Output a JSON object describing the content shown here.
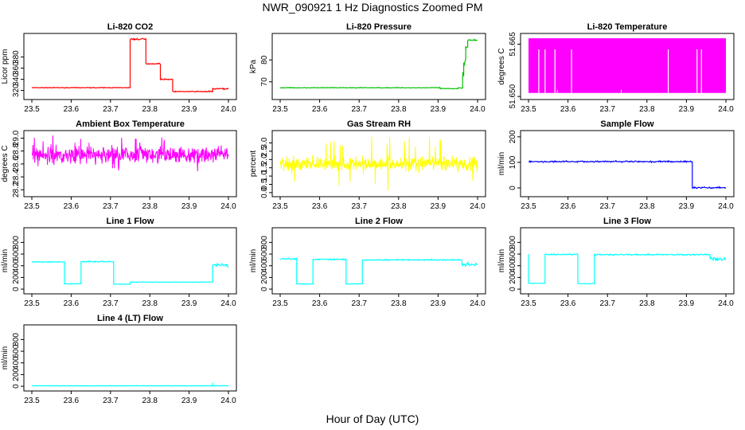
{
  "main_title": "NWR_090921  1 Hz Diagnostics Zoomed PM",
  "xlabel": "Hour of Day (UTC)",
  "chart_data": [
    {
      "type": "line",
      "title": "Li-820 CO2",
      "ylabel": "Licor ppm",
      "color": "#ff0000",
      "xlim": [
        23.5,
        24.0
      ],
      "ylim": [
        308,
        418
      ],
      "xticks": [
        "23.5",
        "23.6",
        "23.7",
        "23.8",
        "23.9",
        "24.0"
      ],
      "yticks": [
        "320",
        "340",
        "360",
        "380"
      ],
      "segments": [
        [
          23.5,
          23.75,
          325,
          0.4
        ],
        [
          23.75,
          23.79,
          412,
          1
        ],
        [
          23.79,
          23.827,
          368,
          0.6
        ],
        [
          23.827,
          23.858,
          340,
          0.6
        ],
        [
          23.858,
          23.935,
          318,
          0.5
        ],
        [
          23.935,
          23.96,
          318,
          0.8
        ],
        [
          23.96,
          24.0,
          323,
          0.8
        ]
      ]
    },
    {
      "type": "line",
      "title": "Li-820 Pressure",
      "ylabel": "kPa",
      "color": "#00c000",
      "xlim": [
        23.5,
        24.0
      ],
      "ylim": [
        63,
        91
      ],
      "xticks": [
        "23.5",
        "23.6",
        "23.7",
        "23.8",
        "23.9",
        "24.0"
      ],
      "yticks": [
        "70",
        "80"
      ],
      "segments": [
        [
          23.5,
          23.905,
          67.3,
          0.1
        ],
        [
          23.905,
          23.95,
          66.9,
          0.1
        ],
        [
          23.95,
          23.962,
          67.2,
          0.1
        ],
        [
          23.962,
          23.965,
          74,
          2
        ],
        [
          23.965,
          23.97,
          80,
          2
        ],
        [
          23.97,
          23.975,
          86,
          0.5
        ],
        [
          23.975,
          24.0,
          89,
          0.2
        ]
      ]
    },
    {
      "type": "line",
      "title": "Li-820 Temperature",
      "ylabel": "degrees C",
      "color": "#ff00ff",
      "xlim": [
        23.5,
        24.0
      ],
      "ylim": [
        51.6498,
        51.6674
      ],
      "xticks": [
        "23.5",
        "23.6",
        "23.7",
        "23.8",
        "23.9",
        "24.0"
      ],
      "yticks": [
        "51.650",
        "51.665"
      ],
      "band": [
        51.651,
        51.6667
      ],
      "gaps": [
        23.526,
        23.542,
        23.567,
        23.609,
        23.854,
        23.927,
        23.938
      ],
      "dropouts": [
        23.573,
        23.735
      ]
    },
    {
      "type": "line",
      "title": "Ambient Box Temperature",
      "ylabel": "degrees C",
      "color": "#ff00ff",
      "xlim": [
        23.5,
        24.0
      ],
      "ylim": [
        28.13,
        29.08
      ],
      "xticks": [
        "23.5",
        "23.6",
        "23.7",
        "23.8",
        "23.9",
        "24.0"
      ],
      "yticks": [
        "28.2",
        "28.4",
        "28.6",
        "28.8",
        "29.0"
      ],
      "noise": {
        "mean": 28.74,
        "sd": 0.09,
        "min": 28.17,
        "max": 29.05
      }
    },
    {
      "type": "line",
      "title": "Gas Stream RH",
      "ylabel": "percent",
      "color": "#ffff00",
      "xlim": [
        23.5,
        24.0
      ],
      "ylim": [
        -0.1,
        3.6
      ],
      "xticks": [
        "23.5",
        "23.6",
        "23.7",
        "23.8",
        "23.9",
        "24.0"
      ],
      "yticks": [
        "0.0",
        "1.0",
        "2.0",
        "3.0"
      ],
      "yticks_minor": [
        "0.5",
        "1.5",
        "2.5"
      ],
      "noise": {
        "mean": 1.75,
        "sd": 0.3,
        "min": 0.1,
        "max": 3.4
      }
    },
    {
      "type": "line",
      "title": "Sample Flow",
      "ylabel": "ml/min",
      "color": "#0000ff",
      "xlim": [
        23.5,
        24.0
      ],
      "ylim": [
        -25,
        215
      ],
      "xticks": [
        "23.5",
        "23.6",
        "23.7",
        "23.8",
        "23.9",
        "24.0"
      ],
      "yticks": [
        "0",
        "100",
        "200"
      ],
      "segments": [
        [
          23.5,
          23.915,
          103,
          2
        ],
        [
          23.915,
          24.0,
          1,
          2
        ]
      ]
    },
    {
      "type": "line",
      "title": "Line 1 Flow",
      "ylabel": "ml/min",
      "color": "#00ffff",
      "xlim": [
        23.5,
        24.0
      ],
      "ylim": [
        -40,
        1010
      ],
      "xticks": [
        "23.5",
        "23.6",
        "23.7",
        "23.8",
        "23.9",
        "24.0"
      ],
      "yticks": [
        "0",
        "200",
        "400",
        "600",
        "800"
      ],
      "segments": [
        [
          23.5,
          23.583,
          465,
          6
        ],
        [
          23.583,
          23.625,
          90,
          3
        ],
        [
          23.625,
          23.708,
          470,
          6
        ],
        [
          23.708,
          23.75,
          85,
          3
        ],
        [
          23.75,
          23.96,
          120,
          3
        ],
        [
          23.96,
          24.0,
          410,
          22
        ]
      ]
    },
    {
      "type": "line",
      "title": "Line 2 Flow",
      "ylabel": "ml/min",
      "color": "#00ffff",
      "xlim": [
        23.5,
        24.0
      ],
      "ylim": [
        -40,
        1010
      ],
      "xticks": [
        "23.5",
        "23.6",
        "23.7",
        "23.8",
        "23.9",
        "24.0"
      ],
      "yticks": [
        "0",
        "200",
        "400",
        "600",
        "800"
      ],
      "segments": [
        [
          23.5,
          23.542,
          520,
          8
        ],
        [
          23.542,
          23.583,
          90,
          3
        ],
        [
          23.583,
          23.667,
          510,
          8
        ],
        [
          23.667,
          23.708,
          90,
          3
        ],
        [
          23.708,
          23.96,
          500,
          7
        ],
        [
          23.96,
          24.0,
          420,
          22
        ]
      ]
    },
    {
      "type": "line",
      "title": "Line 3 Flow",
      "ylabel": "ml/min",
      "color": "#00ffff",
      "xlim": [
        23.5,
        24.0
      ],
      "ylim": [
        -40,
        1010
      ],
      "xticks": [
        "23.5",
        "23.6",
        "23.7",
        "23.8",
        "23.9",
        "24.0"
      ],
      "yticks": [
        "0",
        "200",
        "400",
        "600",
        "800"
      ],
      "segments": [
        [
          23.5,
          23.542,
          100,
          3
        ],
        [
          23.542,
          23.625,
          595,
          8
        ],
        [
          23.625,
          23.667,
          95,
          3
        ],
        [
          23.667,
          23.96,
          590,
          8
        ],
        [
          23.96,
          24.0,
          520,
          22
        ]
      ],
      "spikes": [
        [
          23.5,
          600
        ]
      ]
    },
    {
      "type": "line",
      "title": "Line 4 (LT) Flow",
      "ylabel": "ml/min",
      "color": "#00ffff",
      "xlim": [
        23.5,
        24.0
      ],
      "ylim": [
        -40,
        1010
      ],
      "xticks": [
        "23.5",
        "23.6",
        "23.7",
        "23.8",
        "23.9",
        "24.0"
      ],
      "yticks": [
        "0",
        "200",
        "400",
        "600",
        "800"
      ],
      "segments": [
        [
          23.5,
          24.0,
          8,
          2
        ]
      ],
      "spikes": [
        [
          23.96,
          60
        ]
      ]
    }
  ]
}
